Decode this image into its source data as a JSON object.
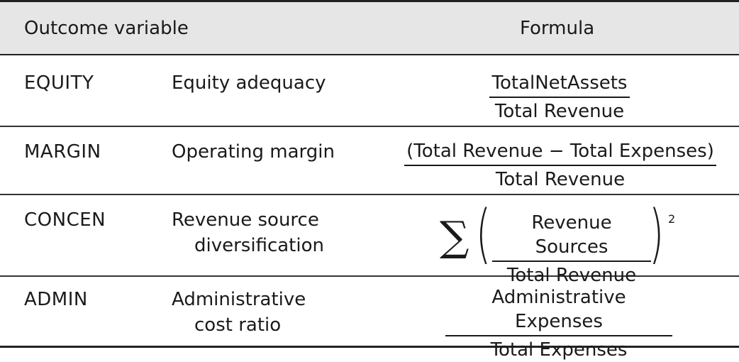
{
  "header": {
    "outcome_label": "Outcome variable",
    "formula_label": "Formula"
  },
  "rows": [
    {
      "code": "EQUITY",
      "desc_line1": "Equity adequacy",
      "desc_line2": "",
      "numerator": "TotalNetAssets",
      "denominator": "Total Revenue"
    },
    {
      "code": "MARGIN",
      "desc_line1": "Operating margin",
      "desc_line2": "",
      "numerator": "(Total Revenue − Total Expenses)",
      "denominator": "Total Revenue"
    },
    {
      "code": "CONCEN",
      "desc_line1": "Revenue source",
      "desc_line2": "diversification",
      "sigma": "∑",
      "open_paren": "(",
      "numerator": "Revenue Sources",
      "denominator": "Total Revenue",
      "close_paren": ")",
      "exponent": "2"
    },
    {
      "code": "ADMIN",
      "desc_line1": "Administrative",
      "desc_line2": "cost ratio",
      "numerator": "Administrative Expenses",
      "denominator": "Total Expenses"
    }
  ]
}
